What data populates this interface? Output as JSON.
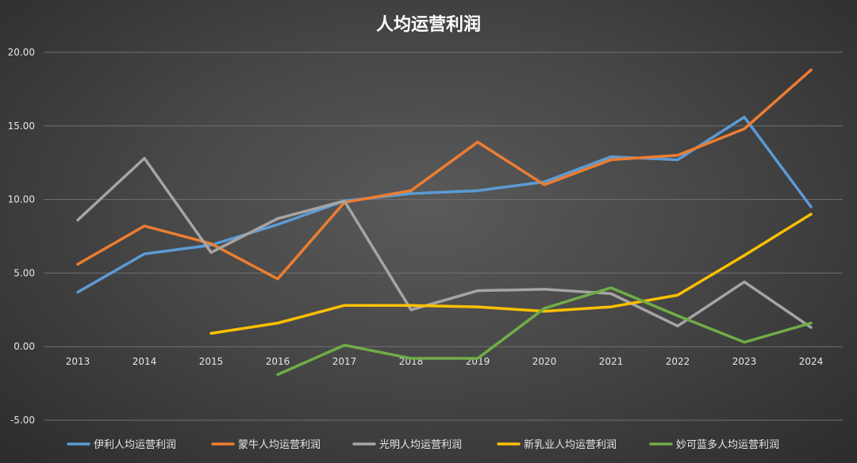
{
  "chart_data": {
    "type": "line",
    "title": "人均运营利润",
    "xlabel": "",
    "ylabel": "",
    "categories": [
      "2013",
      "2014",
      "2015",
      "2016",
      "2017",
      "2018",
      "2019",
      "2020",
      "2021",
      "2022",
      "2023",
      "2024"
    ],
    "ylim": [
      -5,
      20
    ],
    "yticks": [
      "-5.00",
      "0.00",
      "5.00",
      "10.00",
      "15.00",
      "20.00"
    ],
    "grid": true,
    "legend_position": "bottom",
    "series": [
      {
        "name": "伊利人均运营利润",
        "color": "#5b9bd5",
        "values": [
          3.7,
          6.3,
          6.9,
          8.3,
          9.9,
          10.4,
          10.6,
          11.2,
          12.9,
          12.7,
          15.6,
          9.5
        ]
      },
      {
        "name": "蒙牛人均运营利润",
        "color": "#ed7d31",
        "values": [
          5.6,
          8.2,
          7.0,
          4.6,
          9.8,
          10.6,
          13.9,
          11.0,
          12.7,
          13.0,
          14.8,
          18.8
        ]
      },
      {
        "name": "光明人均运营利润",
        "color": "#a5a5a5",
        "values": [
          8.6,
          12.8,
          6.4,
          8.7,
          9.9,
          2.5,
          3.8,
          3.9,
          3.6,
          1.4,
          4.4,
          1.3
        ]
      },
      {
        "name": "新乳业人均运营利润",
        "color": "#ffc000",
        "values": [
          null,
          null,
          0.9,
          1.6,
          2.8,
          2.8,
          2.7,
          2.4,
          2.7,
          3.5,
          6.2,
          9.0
        ]
      },
      {
        "name": "妙可蓝多人均运营利润",
        "color": "#70ad47",
        "values": [
          null,
          null,
          null,
          -1.9,
          0.1,
          -0.8,
          -0.8,
          2.6,
          4.0,
          2.1,
          0.3,
          1.6
        ]
      }
    ]
  }
}
